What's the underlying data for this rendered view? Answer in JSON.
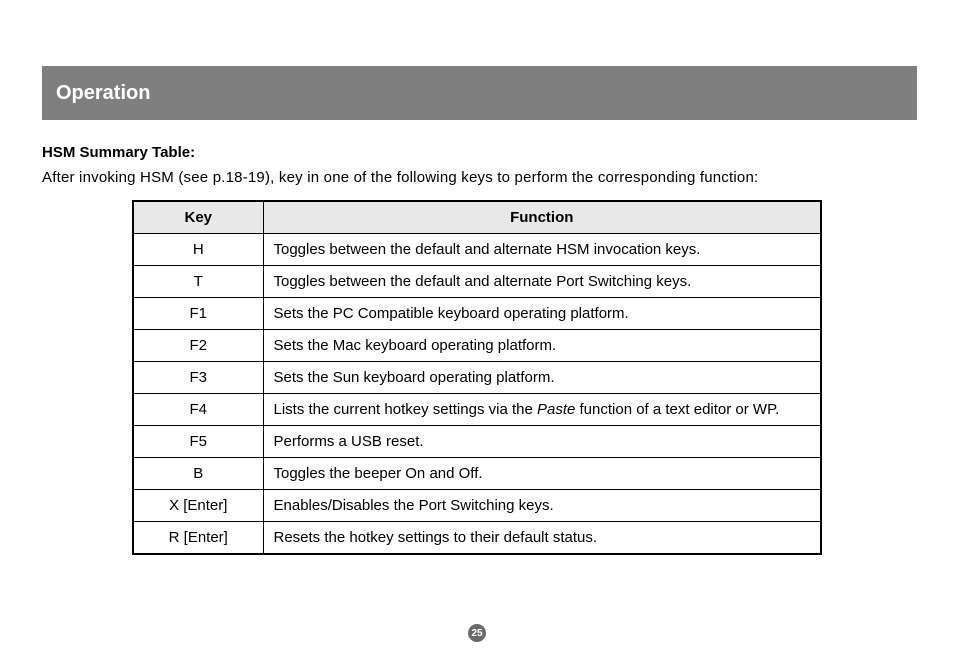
{
  "header": {
    "title": "Operation"
  },
  "section": {
    "subtitle": "HSM Summary Table:",
    "intro": "After invoking HSM (see p.18-19), key in one of the following keys to perform the corresponding function:"
  },
  "table": {
    "columns": [
      "Key",
      "Function"
    ],
    "rows": [
      {
        "key": "H",
        "func_pre": "Toggles between the default and alternate HSM invocation keys.",
        "func_italic": "",
        "func_post": ""
      },
      {
        "key": "T",
        "func_pre": "Toggles between the default and alternate Port Switching keys.",
        "func_italic": "",
        "func_post": ""
      },
      {
        "key": "F1",
        "func_pre": "Sets the PC Compatible keyboard operating platform.",
        "func_italic": "",
        "func_post": ""
      },
      {
        "key": "F2",
        "func_pre": "Sets the Mac keyboard operating platform.",
        "func_italic": "",
        "func_post": ""
      },
      {
        "key": "F3",
        "func_pre": "Sets the Sun keyboard operating platform.",
        "func_italic": "",
        "func_post": ""
      },
      {
        "key": "F4",
        "func_pre": "Lists the current hotkey settings via the ",
        "func_italic": "Paste",
        "func_post": " function of a text editor or WP."
      },
      {
        "key": "F5",
        "func_pre": "Performs a USB reset.",
        "func_italic": "",
        "func_post": ""
      },
      {
        "key": "B",
        "func_pre": "Toggles the beeper On and Off.",
        "func_italic": "",
        "func_post": ""
      },
      {
        "key": "X [Enter]",
        "func_pre": "Enables/Disables the Port Switching keys.",
        "func_italic": "",
        "func_post": ""
      },
      {
        "key": "R [Enter]",
        "func_pre": "Resets the hotkey settings to their default status.",
        "func_italic": "",
        "func_post": ""
      }
    ]
  },
  "page_number": "25",
  "style": {
    "header_bg": "#7f7f7f",
    "header_text_color": "#ffffff",
    "th_bg": "#e8e8e8",
    "border_color": "#000000",
    "body_bg": "#ffffff",
    "pagenum_bg": "#6b6b6b"
  }
}
